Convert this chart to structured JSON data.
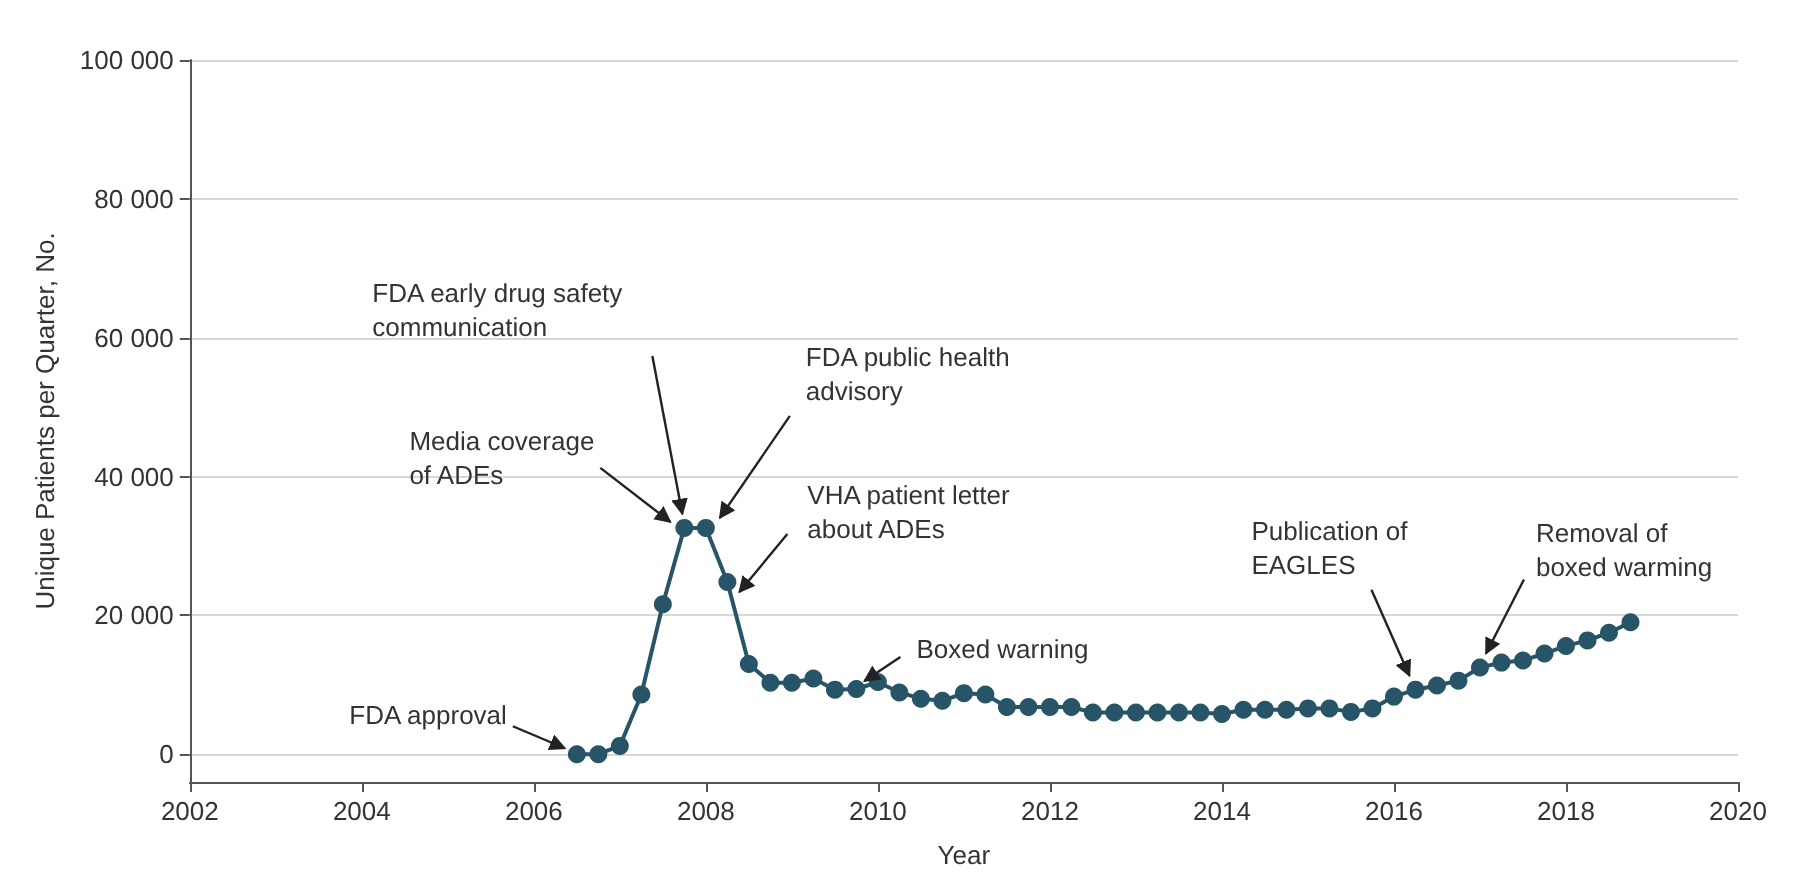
{
  "chart_data": {
    "type": "line",
    "xlabel": "Year",
    "ylabel": "Unique Patients per Quarter, No.",
    "x": [
      2006.5,
      2006.75,
      2007,
      2007.25,
      2007.5,
      2007.75,
      2008,
      2008.25,
      2008.5,
      2008.75,
      2009,
      2009.25,
      2009.5,
      2009.75,
      2010,
      2010.25,
      2010.5,
      2010.75,
      2011,
      2011.25,
      2011.5,
      2011.75,
      2012,
      2012.25,
      2012.5,
      2012.75,
      2013,
      2013.25,
      2013.5,
      2013.75,
      2014,
      2014.25,
      2014.5,
      2014.75,
      2015,
      2015.25,
      2015.5,
      2015.75,
      2016,
      2016.25,
      2016.5,
      2016.75,
      2017,
      2017.25,
      2017.5,
      2017.75,
      2018,
      2018.25,
      2018.5,
      2018.75
    ],
    "series": [
      {
        "color": "#275466",
        "values": [
          0,
          0,
          1200,
          8600,
          21600,
          32600,
          32600,
          24800,
          13000,
          10300,
          10300,
          10900,
          9300,
          9400,
          10400,
          8900,
          8000,
          7700,
          8800,
          8600,
          6800,
          6800,
          6800,
          6800,
          6000,
          6000,
          6000,
          6000,
          6000,
          6000,
          5800,
          6400,
          6400,
          6400,
          6600,
          6600,
          6100,
          6600,
          8300,
          9300,
          9900,
          10600,
          12500,
          13200,
          13500,
          14500,
          15600,
          16400,
          17500,
          19000
        ]
      }
    ],
    "xlim": [
      2002,
      2020
    ],
    "xticks": [
      2002,
      2004,
      2006,
      2008,
      2010,
      2012,
      2014,
      2016,
      2018,
      2020
    ],
    "ylim": [
      -4000,
      100000
    ],
    "yticks": [
      {
        "value": 0,
        "label": "0"
      },
      {
        "value": 20000,
        "label": "20 000"
      },
      {
        "value": 40000,
        "label": "40 000"
      },
      {
        "value": 60000,
        "label": "60 000"
      },
      {
        "value": 80000,
        "label": "80 000"
      },
      {
        "value": 100000,
        "label": "100 000"
      }
    ],
    "grid": "y",
    "marker": "circle",
    "line_style": "solid",
    "annotations": [
      {
        "text": "FDA approval",
        "x": 2006.5,
        "y": 0
      },
      {
        "text": "Media coverage\nof ADEs",
        "x": 2007.75,
        "y": 32600
      },
      {
        "text": "FDA early drug safety\ncommunication",
        "x": 2007.75,
        "y": 32600
      },
      {
        "text": "FDA public health\nadvisory",
        "x": 2008,
        "y": 32600
      },
      {
        "text": "VHA patient letter\nabout ADEs",
        "x": 2008.25,
        "y": 24800
      },
      {
        "text": "Boxed warning",
        "x": 2009.75,
        "y": 9400
      },
      {
        "text": "Publication of\nEAGLES",
        "x": 2016.25,
        "y": 9300
      },
      {
        "text": "Removal of\nboxed warming",
        "x": 2017,
        "y": 12500
      }
    ]
  }
}
